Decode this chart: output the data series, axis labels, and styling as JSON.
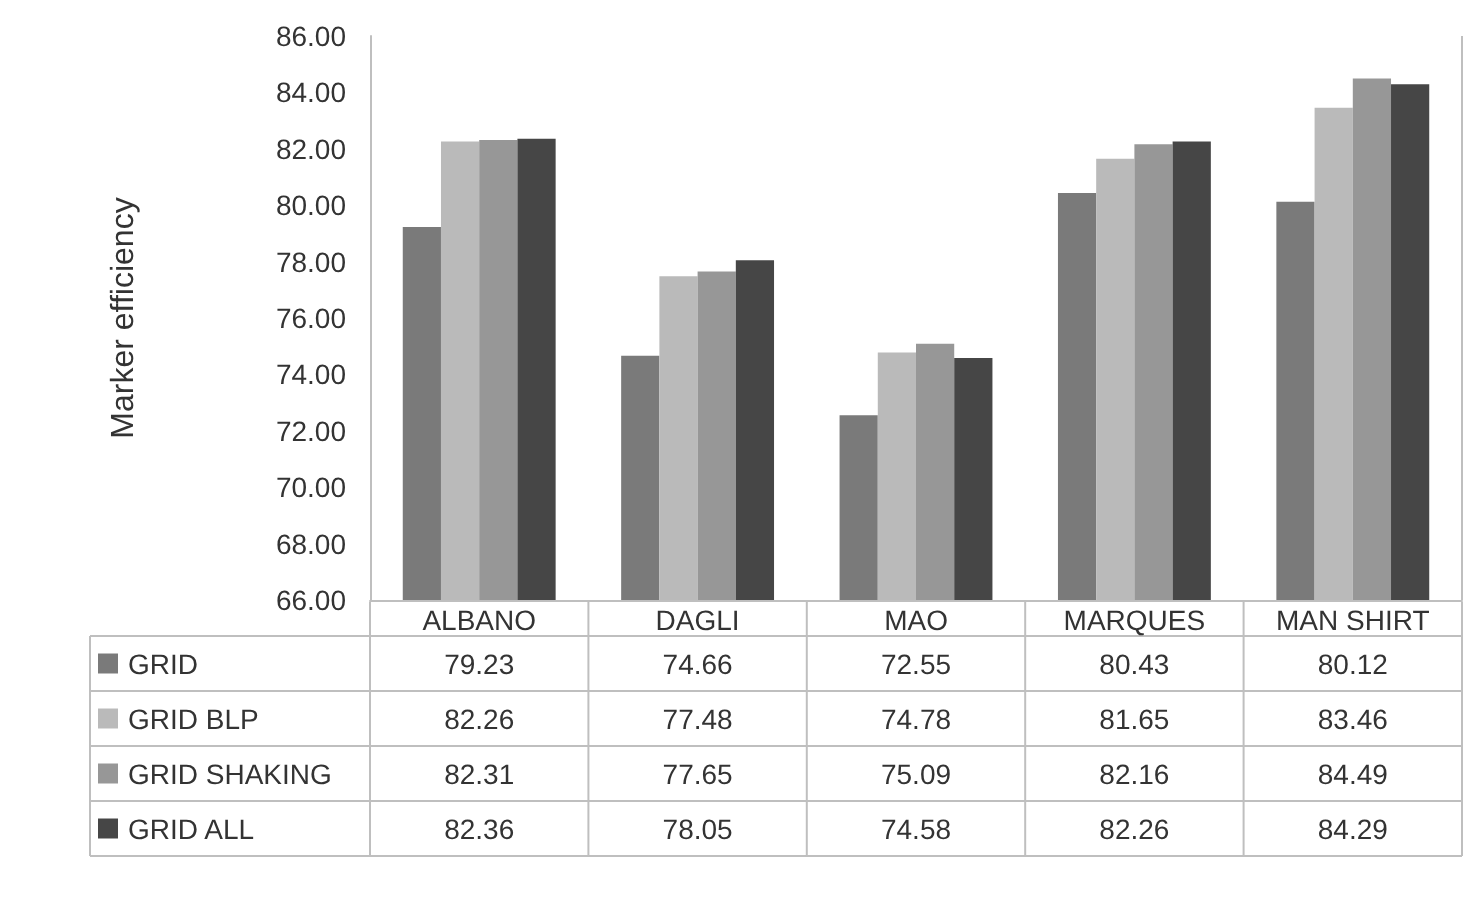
{
  "chart_data": {
    "type": "bar",
    "ylabel": "Marker efficiency",
    "categories": [
      "ALBANO",
      "DAGLI",
      "MAO",
      "MARQUES",
      "MAN SHIRT"
    ],
    "series": [
      {
        "name": "GRID",
        "color": "#7a7a7a",
        "values": [
          79.23,
          74.66,
          72.55,
          80.43,
          80.12
        ]
      },
      {
        "name": "GRID BLP",
        "color": "#bababa",
        "values": [
          82.26,
          77.48,
          74.78,
          81.65,
          83.46
        ]
      },
      {
        "name": "GRID SHAKING",
        "color": "#979797",
        "values": [
          82.31,
          77.65,
          75.09,
          82.16,
          84.49
        ]
      },
      {
        "name": "GRID ALL",
        "color": "#464646",
        "values": [
          82.36,
          78.05,
          74.58,
          82.26,
          84.29
        ]
      }
    ],
    "ylim": [
      66,
      86
    ],
    "yticks": [
      {
        "value": 66,
        "label": "66.00"
      },
      {
        "value": 68,
        "label": "68.00"
      },
      {
        "value": 70,
        "label": "70.00"
      },
      {
        "value": 72,
        "label": "72.00"
      },
      {
        "value": 74,
        "label": "74.00"
      },
      {
        "value": 76,
        "label": "76.00"
      },
      {
        "value": 78,
        "label": "78.00"
      },
      {
        "value": 80,
        "label": "80.00"
      },
      {
        "value": 82,
        "label": "82.00"
      },
      {
        "value": 84,
        "label": "84.00"
      },
      {
        "value": 86,
        "label": "86.00"
      }
    ],
    "grid": false,
    "legend": "bottom left",
    "data_labels": true
  }
}
